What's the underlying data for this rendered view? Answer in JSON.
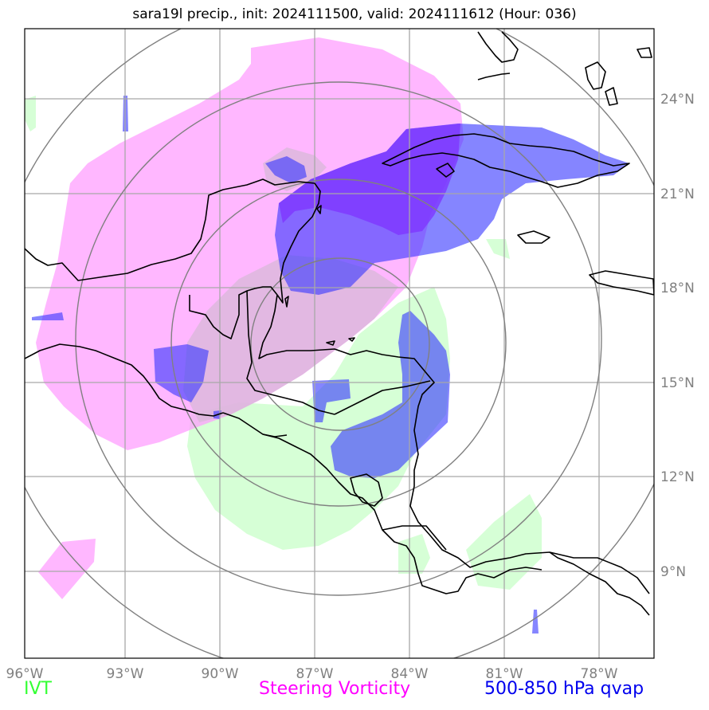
{
  "title": "sara19l precip., init: 2024111500, valid: 2024111612 (Hour: 036)",
  "axes": {
    "lon_ticks": [
      {
        "value": -96,
        "label": "96°W"
      },
      {
        "value": -93,
        "label": "93°W"
      },
      {
        "value": -90,
        "label": "90°W"
      },
      {
        "value": -87,
        "label": "87°W"
      },
      {
        "value": -84,
        "label": "84°W"
      },
      {
        "value": -81,
        "label": "81°W"
      },
      {
        "value": -78,
        "label": "78°W"
      }
    ],
    "lat_ticks": [
      {
        "value": 24,
        "label": "24°N"
      },
      {
        "value": 21,
        "label": "21°N"
      },
      {
        "value": 18,
        "label": "18°N"
      },
      {
        "value": 15,
        "label": "15°N"
      },
      {
        "value": 12,
        "label": "12°N"
      },
      {
        "value": 9,
        "label": "9°N"
      }
    ],
    "lon_range": [
      -96,
      -76.2
    ],
    "lat_range": [
      6.3,
      26.3
    ],
    "grid": true
  },
  "legend": {
    "ivt": {
      "label": "IVT",
      "color": "#33ff33"
    },
    "vorticity": {
      "label": "Steering Vorticity",
      "color": "#ff00ff"
    },
    "qvap": {
      "label": "500-850 hPa qvap",
      "color": "#0000ee"
    }
  },
  "colors": {
    "ivt_fill": "#ccffcc",
    "vorticity_fill": "#ff99ff",
    "qvap_fill": "#3333ff",
    "overlap_fill": "#7f33ff",
    "grid": "#a0a0a0",
    "range_rings": "#808080",
    "coastline": "#000000"
  },
  "storm_center": {
    "lon": -87.1,
    "lat": 15.9
  }
}
